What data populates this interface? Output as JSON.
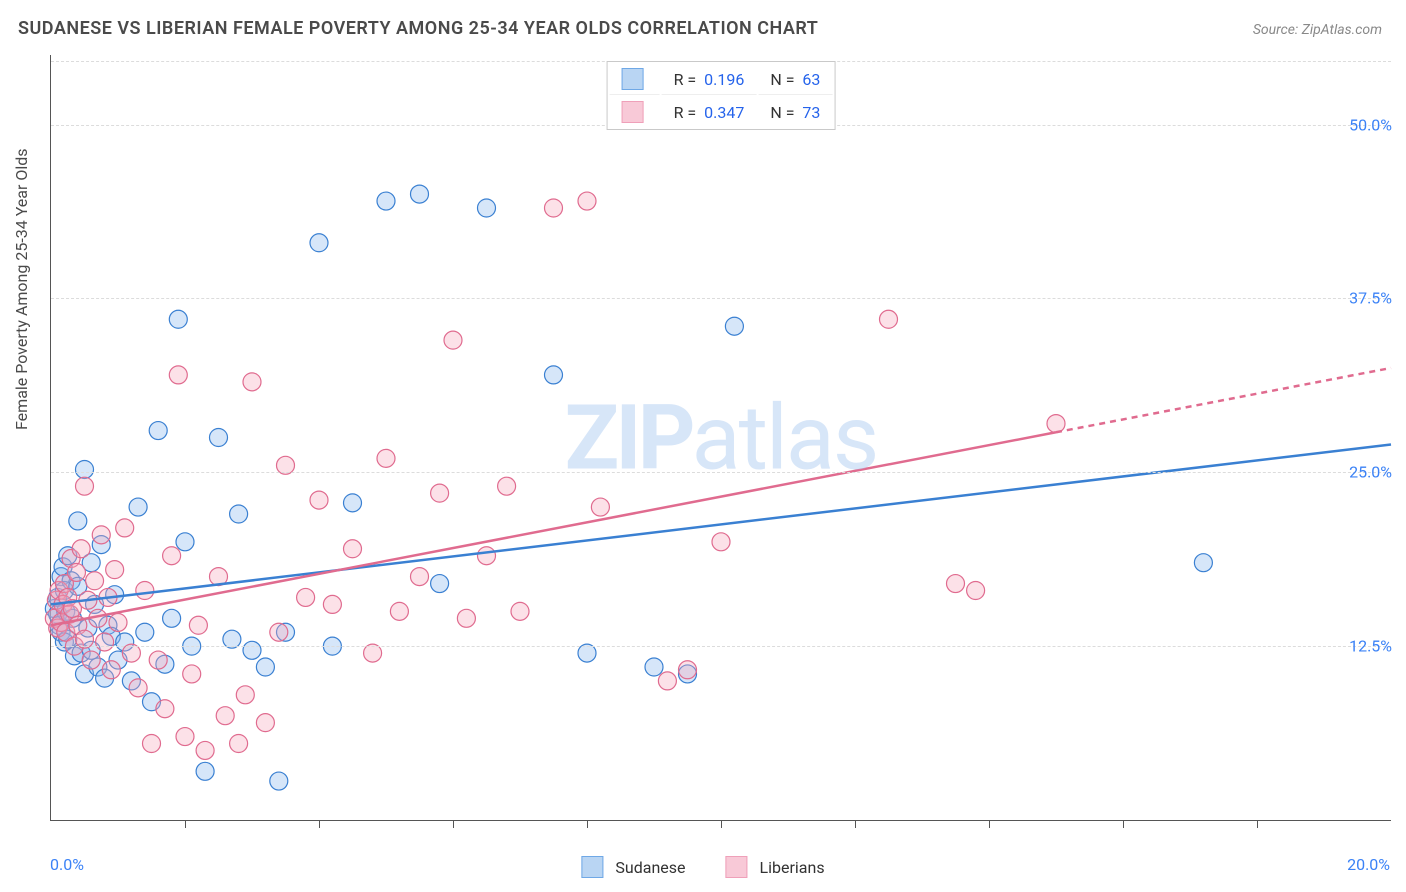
{
  "title": "SUDANESE VS LIBERIAN FEMALE POVERTY AMONG 25-34 YEAR OLDS CORRELATION CHART",
  "source": "Source: ZipAtlas.com",
  "watermark": {
    "bold": "ZIP",
    "rest": "atlas"
  },
  "y_axis_label": "Female Poverty Among 25-34 Year Olds",
  "chart": {
    "type": "scatter",
    "xlim": [
      0,
      20
    ],
    "ylim": [
      0,
      55
    ],
    "x_start_label": "0.0%",
    "x_end_label": "20.0%",
    "x_tick_positions": [
      2,
      4,
      6,
      8,
      10,
      12,
      14,
      16,
      18
    ],
    "y_ticks": [
      {
        "v": 12.5,
        "label": "12.5%"
      },
      {
        "v": 25.0,
        "label": "25.0%"
      },
      {
        "v": 37.5,
        "label": "37.5%"
      },
      {
        "v": 50.0,
        "label": "50.0%"
      }
    ],
    "background_color": "#ffffff",
    "grid_color": "#dcdcdc",
    "marker_radius": 9,
    "marker_stroke_width": 1.2,
    "marker_fill_opacity": 0.35,
    "trend_line_stroke_width": 2.5,
    "series": [
      {
        "name": "Sudanese",
        "fill_color": "#8ab8ee",
        "stroke_color": "#3a80d2",
        "swatch_fill": "#b9d5f3",
        "swatch_stroke": "#6fa8e6",
        "R": "0.196",
        "N": "63",
        "trend": {
          "x1": 0,
          "y1": 15.5,
          "x2": 20,
          "y2": 27.0,
          "solid_until_x": 20
        },
        "points": [
          [
            0.05,
            15.2
          ],
          [
            0.1,
            14.8
          ],
          [
            0.1,
            16.0
          ],
          [
            0.12,
            14.0
          ],
          [
            0.15,
            17.5
          ],
          [
            0.15,
            13.5
          ],
          [
            0.18,
            18.2
          ],
          [
            0.2,
            12.8
          ],
          [
            0.2,
            16.5
          ],
          [
            0.22,
            15.0
          ],
          [
            0.25,
            19.0
          ],
          [
            0.25,
            13.0
          ],
          [
            0.3,
            17.2
          ],
          [
            0.32,
            14.5
          ],
          [
            0.35,
            11.8
          ],
          [
            0.4,
            16.8
          ],
          [
            0.4,
            21.5
          ],
          [
            0.45,
            12.0
          ],
          [
            0.5,
            10.5
          ],
          [
            0.5,
            25.2
          ],
          [
            0.55,
            13.8
          ],
          [
            0.6,
            12.2
          ],
          [
            0.6,
            18.5
          ],
          [
            0.65,
            15.5
          ],
          [
            0.7,
            11.0
          ],
          [
            0.75,
            19.8
          ],
          [
            0.8,
            10.2
          ],
          [
            0.85,
            14.0
          ],
          [
            0.9,
            13.2
          ],
          [
            0.95,
            16.2
          ],
          [
            1.0,
            11.5
          ],
          [
            1.1,
            12.8
          ],
          [
            1.2,
            10.0
          ],
          [
            1.3,
            22.5
          ],
          [
            1.4,
            13.5
          ],
          [
            1.5,
            8.5
          ],
          [
            1.6,
            28.0
          ],
          [
            1.7,
            11.2
          ],
          [
            1.8,
            14.5
          ],
          [
            1.9,
            36.0
          ],
          [
            2.0,
            20.0
          ],
          [
            2.1,
            12.5
          ],
          [
            2.3,
            3.5
          ],
          [
            2.5,
            27.5
          ],
          [
            2.7,
            13.0
          ],
          [
            2.8,
            22.0
          ],
          [
            3.0,
            12.2
          ],
          [
            3.2,
            11.0
          ],
          [
            3.4,
            2.8
          ],
          [
            3.5,
            13.5
          ],
          [
            4.0,
            41.5
          ],
          [
            4.2,
            12.5
          ],
          [
            4.5,
            22.8
          ],
          [
            5.0,
            44.5
          ],
          [
            5.5,
            45.0
          ],
          [
            5.8,
            17.0
          ],
          [
            6.5,
            44.0
          ],
          [
            7.5,
            32.0
          ],
          [
            8.0,
            12.0
          ],
          [
            9.0,
            11.0
          ],
          [
            9.5,
            10.5
          ],
          [
            10.2,
            35.5
          ],
          [
            17.2,
            18.5
          ]
        ]
      },
      {
        "name": "Liberians",
        "fill_color": "#f5a8be",
        "stroke_color": "#e06b8f",
        "swatch_fill": "#f8c9d7",
        "swatch_stroke": "#efa0b9",
        "R": "0.347",
        "N": "73",
        "trend": {
          "x1": 0,
          "y1": 14.0,
          "x2": 20,
          "y2": 32.5,
          "solid_until_x": 15
        },
        "points": [
          [
            0.05,
            14.5
          ],
          [
            0.08,
            15.8
          ],
          [
            0.1,
            13.8
          ],
          [
            0.12,
            16.5
          ],
          [
            0.15,
            14.2
          ],
          [
            0.18,
            15.5
          ],
          [
            0.2,
            17.0
          ],
          [
            0.22,
            13.5
          ],
          [
            0.25,
            16.0
          ],
          [
            0.28,
            14.8
          ],
          [
            0.3,
            18.8
          ],
          [
            0.32,
            15.2
          ],
          [
            0.35,
            12.5
          ],
          [
            0.38,
            17.8
          ],
          [
            0.4,
            14.0
          ],
          [
            0.45,
            19.5
          ],
          [
            0.5,
            24.0
          ],
          [
            0.5,
            13.0
          ],
          [
            0.55,
            15.8
          ],
          [
            0.6,
            11.5
          ],
          [
            0.65,
            17.2
          ],
          [
            0.7,
            14.5
          ],
          [
            0.75,
            20.5
          ],
          [
            0.8,
            12.8
          ],
          [
            0.85,
            16.0
          ],
          [
            0.9,
            10.8
          ],
          [
            0.95,
            18.0
          ],
          [
            1.0,
            14.2
          ],
          [
            1.1,
            21.0
          ],
          [
            1.2,
            12.0
          ],
          [
            1.3,
            9.5
          ],
          [
            1.4,
            16.5
          ],
          [
            1.5,
            5.5
          ],
          [
            1.6,
            11.5
          ],
          [
            1.7,
            8.0
          ],
          [
            1.8,
            19.0
          ],
          [
            1.9,
            32.0
          ],
          [
            2.0,
            6.0
          ],
          [
            2.1,
            10.5
          ],
          [
            2.2,
            14.0
          ],
          [
            2.3,
            5.0
          ],
          [
            2.5,
            17.5
          ],
          [
            2.6,
            7.5
          ],
          [
            2.8,
            5.5
          ],
          [
            2.9,
            9.0
          ],
          [
            3.0,
            31.5
          ],
          [
            3.2,
            7.0
          ],
          [
            3.4,
            13.5
          ],
          [
            3.5,
            25.5
          ],
          [
            3.8,
            16.0
          ],
          [
            4.0,
            23.0
          ],
          [
            4.2,
            15.5
          ],
          [
            4.5,
            19.5
          ],
          [
            4.8,
            12.0
          ],
          [
            5.0,
            26.0
          ],
          [
            5.2,
            15.0
          ],
          [
            5.5,
            17.5
          ],
          [
            5.8,
            23.5
          ],
          [
            6.0,
            34.5
          ],
          [
            6.2,
            14.5
          ],
          [
            6.5,
            19.0
          ],
          [
            6.8,
            24.0
          ],
          [
            7.0,
            15.0
          ],
          [
            7.5,
            44.0
          ],
          [
            8.0,
            44.5
          ],
          [
            8.2,
            22.5
          ],
          [
            9.2,
            10.0
          ],
          [
            9.5,
            10.8
          ],
          [
            10.0,
            20.0
          ],
          [
            12.5,
            36.0
          ],
          [
            13.5,
            17.0
          ],
          [
            13.8,
            16.5
          ],
          [
            15.0,
            28.5
          ]
        ]
      }
    ]
  },
  "legend_top_labels": {
    "R_prefix": "R  =",
    "N_prefix": "N  ="
  }
}
